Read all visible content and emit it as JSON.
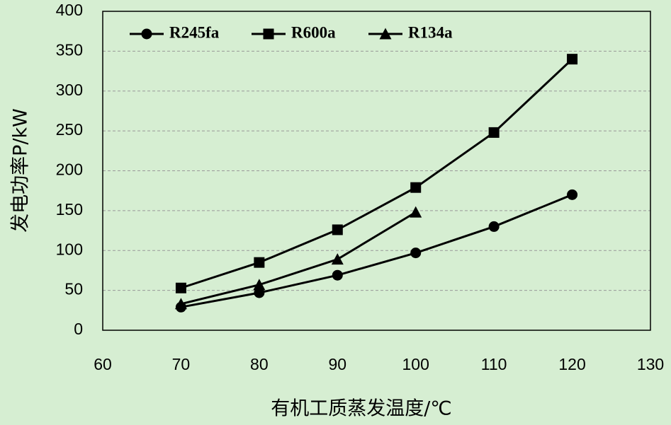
{
  "chart_data": {
    "type": "line",
    "x_label": "有机工质蒸发温度/℃",
    "y_label": "发电功率P/kW",
    "xlim": [
      60,
      130
    ],
    "xticks": [
      60,
      70,
      80,
      90,
      100,
      110,
      120,
      130
    ],
    "ylim": [
      0,
      400
    ],
    "yticks": [
      0,
      50,
      100,
      150,
      200,
      250,
      300,
      350,
      400
    ],
    "grid": true,
    "legend": "top-left",
    "series": [
      {
        "name": "R245fa",
        "color": "#000000",
        "marker": "circle",
        "x": [
          70,
          80,
          90,
          100,
          110,
          120
        ],
        "values": [
          29,
          47,
          69,
          97,
          130,
          170
        ]
      },
      {
        "name": "R600a",
        "color": "#000000",
        "marker": "square",
        "x": [
          70,
          80,
          90,
          100,
          110,
          120
        ],
        "values": [
          53,
          85,
          126,
          179,
          248,
          340
        ]
      },
      {
        "name": "R134a",
        "color": "#000000",
        "marker": "triangle",
        "x": [
          70,
          80,
          90,
          100
        ],
        "values": [
          33,
          57,
          89,
          148
        ]
      }
    ]
  }
}
